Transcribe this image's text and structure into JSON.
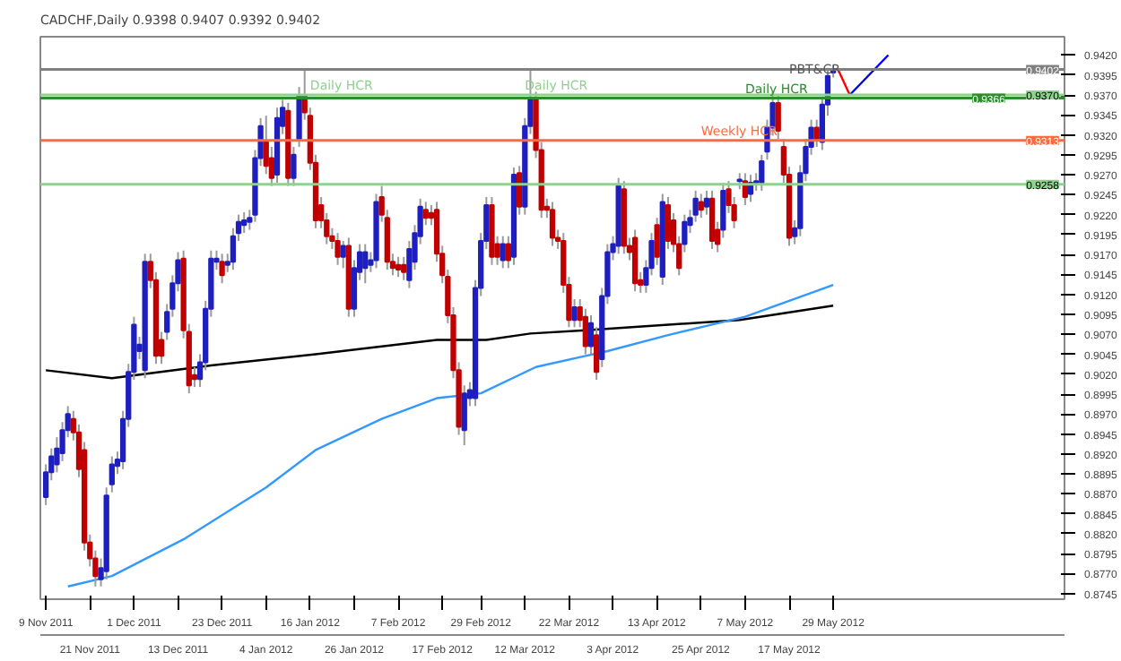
{
  "chart_data": {
    "type": "candlestick",
    "title": "CADCHF,Daily  0.9398 0.9407 0.9392 0.9402",
    "categories": [
      "9 Nov 2011",
      null,
      null,
      null,
      null,
      null,
      null,
      null,
      "21 Nov 2011",
      null,
      null,
      null,
      null,
      null,
      null,
      null,
      "1 Dec 2011",
      null,
      null,
      null,
      null,
      null,
      null,
      null,
      "13 Dec 2011",
      null,
      null,
      null,
      null,
      null,
      null,
      null,
      "23 Dec 2011",
      null,
      null,
      null,
      null,
      null,
      null,
      null,
      "4 Jan 2012",
      null,
      null,
      null,
      null,
      null,
      null,
      null,
      "16 Jan 2012",
      null,
      null,
      null,
      null,
      null,
      null,
      null,
      "26 Jan 2012",
      null,
      null,
      null,
      null,
      null,
      null,
      null,
      "7 Feb 2012",
      null,
      null,
      null,
      null,
      null,
      null,
      null,
      "17 Feb 2012",
      null,
      null,
      null,
      null,
      null,
      null,
      "29 Feb 2012",
      null,
      null,
      null,
      null,
      null,
      null,
      null,
      "12 Mar 2012",
      null,
      null,
      null,
      null,
      null,
      null,
      null,
      "22 Mar 2012",
      null,
      null,
      null,
      null,
      null,
      null,
      null,
      "3 Apr 2012",
      null,
      null,
      null,
      null,
      null,
      null,
      null,
      "13 Apr 2012",
      null,
      null,
      null,
      null,
      null,
      null,
      null,
      "25 Apr 2012",
      null,
      null,
      null,
      null,
      null,
      null,
      null,
      "7 May 2012",
      null,
      null,
      null,
      null,
      null,
      null,
      null,
      "17 May 2012",
      null,
      null,
      null,
      null,
      null,
      null,
      null,
      "29 May 2012",
      null,
      null,
      null,
      null,
      null,
      null,
      null,
      null,
      null,
      null,
      null,
      null,
      null,
      null,
      null,
      null,
      null,
      null,
      null,
      null,
      null,
      null,
      null,
      null,
      null,
      null,
      null,
      null,
      null,
      null,
      null,
      null,
      null,
      null,
      null,
      null,
      null,
      null,
      null,
      null,
      null
    ],
    "ohlc": [
      [
        0.8866,
        0.8907,
        0.8856,
        0.8897
      ],
      [
        0.8897,
        0.8927,
        0.8887,
        0.8917
      ],
      [
        0.8907,
        0.8941,
        0.8897,
        0.8927
      ],
      [
        0.8921,
        0.896,
        0.8911,
        0.895
      ],
      [
        0.895,
        0.898,
        0.8941,
        0.897
      ],
      [
        0.8964,
        0.8974,
        0.8937,
        0.8947
      ],
      [
        0.8947,
        0.8957,
        0.8891,
        0.8901
      ],
      [
        0.8925,
        0.8935,
        0.8799,
        0.8809
      ],
      [
        0.8809,
        0.8819,
        0.8779,
        0.8789
      ],
      [
        0.8789,
        0.8799,
        0.8754,
        0.8767
      ],
      [
        0.8763,
        0.8789,
        0.8754,
        0.8777
      ],
      [
        0.8773,
        0.8878,
        0.8763,
        0.8868
      ],
      [
        0.8882,
        0.8917,
        0.8872,
        0.8907
      ],
      [
        0.8905,
        0.8923,
        0.8895,
        0.8913
      ],
      [
        0.8911,
        0.8974,
        0.8901,
        0.8964
      ],
      [
        0.8964,
        0.9033,
        0.8954,
        0.9023
      ],
      [
        0.9023,
        0.9092,
        0.9013,
        0.9082
      ],
      [
        0.9049,
        0.9067,
        0.9039,
        0.9057
      ],
      [
        0.9025,
        0.9171,
        0.9015,
        0.9161
      ],
      [
        0.9161,
        0.9171,
        0.9128,
        0.9138
      ],
      [
        0.9138,
        0.9148,
        0.9033,
        0.9043
      ],
      [
        0.9063,
        0.9073,
        0.9033,
        0.9043
      ],
      [
        0.9073,
        0.9108,
        0.9063,
        0.9098
      ],
      [
        0.9102,
        0.9144,
        0.9092,
        0.9134
      ],
      [
        0.9134,
        0.9173,
        0.9124,
        0.9163
      ],
      [
        0.9165,
        0.9175,
        0.9065,
        0.9075
      ],
      [
        0.9073,
        0.9083,
        0.8996,
        0.9006
      ],
      [
        0.9019,
        0.9029,
        0.9004,
        0.9014
      ],
      [
        0.9014,
        0.9045,
        0.9004,
        0.9035
      ],
      [
        0.9035,
        0.9112,
        0.9025,
        0.9102
      ],
      [
        0.9102,
        0.9175,
        0.9092,
        0.9165
      ],
      [
        0.9161,
        0.9175,
        0.9151,
        0.9165
      ],
      [
        0.9161,
        0.9171,
        0.9134,
        0.9144
      ],
      [
        0.9157,
        0.9171,
        0.9148,
        0.9161
      ],
      [
        0.9161,
        0.9203,
        0.9151,
        0.9193
      ],
      [
        0.9197,
        0.922,
        0.9187,
        0.9211
      ],
      [
        0.9207,
        0.9223,
        0.9197,
        0.9213
      ],
      [
        0.9211,
        0.9226,
        0.9201,
        0.9216
      ],
      [
        0.922,
        0.9301,
        0.9211,
        0.9291
      ],
      [
        0.9291,
        0.9341,
        0.9281,
        0.9331
      ],
      [
        0.9311,
        0.9344,
        0.9271,
        0.9281
      ],
      [
        0.9291,
        0.9305,
        0.9256,
        0.9266
      ],
      [
        0.927,
        0.9354,
        0.926,
        0.9341
      ],
      [
        0.9331,
        0.9364,
        0.9321,
        0.9354
      ],
      [
        0.935,
        0.936,
        0.9256,
        0.9266
      ],
      [
        0.9266,
        0.9305,
        0.9256,
        0.9295
      ],
      [
        0.9315,
        0.938,
        0.9305,
        0.937
      ],
      [
        0.937,
        0.9402,
        0.9339,
        0.9348
      ],
      [
        0.9344,
        0.9354,
        0.9276,
        0.9285
      ],
      [
        0.9285,
        0.9295,
        0.9203,
        0.9213
      ],
      [
        0.9232,
        0.9242,
        0.9203,
        0.9213
      ],
      [
        0.9213,
        0.9222,
        0.9183,
        0.9193
      ],
      [
        0.9193,
        0.9203,
        0.9177,
        0.9187
      ],
      [
        0.9187,
        0.9197,
        0.9157,
        0.9167
      ],
      [
        0.9167,
        0.9187,
        0.9153,
        0.9181
      ],
      [
        0.9181,
        0.9191,
        0.9092,
        0.9102
      ],
      [
        0.9102,
        0.9163,
        0.9092,
        0.9153
      ],
      [
        0.9148,
        0.9183,
        0.9138,
        0.9173
      ],
      [
        0.9153,
        0.9183,
        0.9134,
        0.9173
      ],
      [
        0.9157,
        0.9173,
        0.9148,
        0.9163
      ],
      [
        0.9163,
        0.9246,
        0.9153,
        0.9236
      ],
      [
        0.9242,
        0.9256,
        0.9211,
        0.922
      ],
      [
        0.9216,
        0.9226,
        0.9151,
        0.9161
      ],
      [
        0.9161,
        0.9171,
        0.9144,
        0.9153
      ],
      [
        0.9157,
        0.9167,
        0.9142,
        0.9151
      ],
      [
        0.9157,
        0.9167,
        0.9138,
        0.9148
      ],
      [
        0.9138,
        0.9187,
        0.9128,
        0.9177
      ],
      [
        0.9161,
        0.9207,
        0.9151,
        0.9197
      ],
      [
        0.9193,
        0.924,
        0.9183,
        0.923
      ],
      [
        0.9226,
        0.9236,
        0.9207,
        0.9216
      ],
      [
        0.9222,
        0.9232,
        0.9207,
        0.9216
      ],
      [
        0.9226,
        0.9236,
        0.9161,
        0.9171
      ],
      [
        0.9171,
        0.9181,
        0.9134,
        0.9144
      ],
      [
        0.9142,
        0.9151,
        0.9084,
        0.9094
      ],
      [
        0.9094,
        0.9104,
        0.9015,
        0.9025
      ],
      [
        0.9025,
        0.9035,
        0.8944,
        0.8954
      ],
      [
        0.895,
        0.9006,
        0.8931,
        0.8996
      ],
      [
        0.899,
        0.901,
        0.898,
        0.9
      ],
      [
        0.899,
        0.9138,
        0.898,
        0.9128
      ],
      [
        0.9128,
        0.9197,
        0.9118,
        0.9187
      ],
      [
        0.9187,
        0.9242,
        0.9177,
        0.9232
      ],
      [
        0.9232,
        0.9242,
        0.9157,
        0.9167
      ],
      [
        0.9183,
        0.9193,
        0.9157,
        0.9167
      ],
      [
        0.9163,
        0.9193,
        0.9153,
        0.9183
      ],
      [
        0.9183,
        0.9193,
        0.9153,
        0.9163
      ],
      [
        0.9167,
        0.9279,
        0.9157,
        0.927
      ],
      [
        0.9272,
        0.9281,
        0.922,
        0.923
      ],
      [
        0.923,
        0.9341,
        0.922,
        0.9331
      ],
      [
        0.9331,
        0.9402,
        0.9321,
        0.9364
      ],
      [
        0.9364,
        0.9374,
        0.9291,
        0.9301
      ],
      [
        0.9301,
        0.9311,
        0.9216,
        0.9226
      ],
      [
        0.923,
        0.924,
        0.9216,
        0.9226
      ],
      [
        0.9226,
        0.9236,
        0.9181,
        0.9191
      ],
      [
        0.9191,
        0.9201,
        0.9177,
        0.9187
      ],
      [
        0.9187,
        0.9197,
        0.9122,
        0.9132
      ],
      [
        0.9132,
        0.9142,
        0.9079,
        0.9088
      ],
      [
        0.9088,
        0.9114,
        0.9079,
        0.9104
      ],
      [
        0.9104,
        0.9114,
        0.9079,
        0.9088
      ],
      [
        0.9092,
        0.9102,
        0.9045,
        0.9055
      ],
      [
        0.9055,
        0.9094,
        0.9045,
        0.9084
      ],
      [
        0.9069,
        0.9079,
        0.9013,
        0.9023
      ],
      [
        0.9039,
        0.9128,
        0.9029,
        0.9118
      ],
      [
        0.9118,
        0.9183,
        0.9108,
        0.9173
      ],
      [
        0.9173,
        0.9193,
        0.9163,
        0.9183
      ],
      [
        0.9181,
        0.9266,
        0.9171,
        0.9256
      ],
      [
        0.9252,
        0.9262,
        0.9171,
        0.9181
      ],
      [
        0.9181,
        0.9191,
        0.9163,
        0.9173
      ],
      [
        0.9191,
        0.9201,
        0.9124,
        0.9134
      ],
      [
        0.9138,
        0.9148,
        0.9122,
        0.9132
      ],
      [
        0.9132,
        0.9163,
        0.9122,
        0.9153
      ],
      [
        0.9153,
        0.9197,
        0.9144,
        0.9187
      ],
      [
        0.9207,
        0.9216,
        0.9157,
        0.9167
      ],
      [
        0.9142,
        0.9246,
        0.9132,
        0.9236
      ],
      [
        0.9232,
        0.9242,
        0.9177,
        0.9187
      ],
      [
        0.9213,
        0.9222,
        0.9173,
        0.9183
      ],
      [
        0.9183,
        0.9193,
        0.9144,
        0.9153
      ],
      [
        0.9183,
        0.922,
        0.9173,
        0.9211
      ],
      [
        0.9207,
        0.9226,
        0.9197,
        0.9216
      ],
      [
        0.922,
        0.925,
        0.9211,
        0.924
      ],
      [
        0.9236,
        0.9246,
        0.9216,
        0.9226
      ],
      [
        0.923,
        0.925,
        0.922,
        0.924
      ],
      [
        0.924,
        0.925,
        0.9177,
        0.9187
      ],
      [
        0.9201,
        0.9211,
        0.9173,
        0.9183
      ],
      [
        0.9201,
        0.926,
        0.9191,
        0.925
      ],
      [
        0.9252,
        0.9262,
        0.9222,
        0.9232
      ],
      [
        0.9232,
        0.9242,
        0.9203,
        0.9213
      ],
      [
        0.9262,
        0.9272,
        0.9252,
        0.9264
      ],
      [
        0.9262,
        0.9272,
        0.9232,
        0.9242
      ],
      [
        0.9246,
        0.927,
        0.9236,
        0.926
      ],
      [
        0.926,
        0.9272,
        0.925,
        0.9262
      ],
      [
        0.926,
        0.9295,
        0.925,
        0.9287
      ],
      [
        0.9299,
        0.9339,
        0.9289,
        0.9329
      ],
      [
        0.9329,
        0.9374,
        0.9319,
        0.936
      ],
      [
        0.936,
        0.937,
        0.9315,
        0.9325
      ],
      [
        0.9305,
        0.9315,
        0.926,
        0.927
      ],
      [
        0.927,
        0.928,
        0.9181,
        0.9191
      ],
      [
        0.9193,
        0.9213,
        0.9183,
        0.9203
      ],
      [
        0.9203,
        0.9282,
        0.9193,
        0.9272
      ],
      [
        0.9272,
        0.9315,
        0.9262,
        0.9305
      ],
      [
        0.9305,
        0.9339,
        0.9295,
        0.9329
      ],
      [
        0.9329,
        0.9339,
        0.9305,
        0.9315
      ],
      [
        0.9311,
        0.9368,
        0.9301,
        0.9358
      ],
      [
        0.9358,
        0.9404,
        0.9344,
        0.9394
      ],
      [
        0.9398,
        0.9407,
        0.9392,
        0.9402
      ],
      null,
      null,
      null,
      null,
      null,
      null,
      null,
      null,
      null,
      null,
      null,
      null,
      null,
      null,
      null,
      null,
      null,
      null,
      null,
      null,
      null,
      null,
      null,
      null,
      null,
      null,
      null,
      null,
      null,
      null,
      null,
      null,
      null,
      null,
      null,
      null,
      null,
      null,
      null,
      null,
      null
    ],
    "series": [
      {
        "type": "line",
        "color": "#000000",
        "values": [
          0.9025,
          null,
          null,
          null,
          null,
          null,
          null,
          null,
          null,
          null,
          null,
          null,
          0.9015,
          null,
          null,
          null,
          null,
          null,
          null,
          null,
          null,
          null,
          null,
          null,
          null,
          null,
          null,
          null,
          null,
          null,
          0.9031,
          null,
          null,
          null,
          null,
          null,
          null,
          null,
          null,
          null,
          null,
          null,
          null,
          null,
          null,
          null,
          null,
          null,
          null,
          0.9045,
          null,
          null,
          null,
          null,
          null,
          null,
          null,
          null,
          null,
          null,
          null,
          null,
          null,
          null,
          null,
          null,
          null,
          null,
          null,
          null,
          null,
          0.9063,
          null,
          null,
          null,
          null,
          null,
          null,
          null,
          null,
          0.9063,
          null,
          null,
          null,
          null,
          null,
          null,
          null,
          0.9071,
          null,
          null,
          null,
          null,
          null,
          null,
          null,
          null,
          null,
          0.9075,
          null,
          null,
          null,
          null,
          null,
          null,
          null,
          null,
          null,
          null,
          null,
          null,
          null,
          null,
          null,
          null,
          null,
          null,
          null,
          null,
          null,
          null,
          null,
          null,
          null,
          null,
          null,
          0.9088,
          null,
          null,
          null,
          null,
          null,
          null,
          null,
          null,
          null,
          null,
          null,
          null,
          null,
          null,
          null,
          null,
          0.9106,
          null,
          null,
          null,
          null,
          null,
          null,
          null,
          null,
          null,
          null,
          null,
          null,
          null,
          null,
          null,
          null,
          null,
          null,
          null,
          null,
          null,
          null,
          null,
          null,
          null,
          null,
          null,
          null,
          null,
          null,
          null,
          null,
          null,
          null,
          null,
          null,
          null,
          null,
          null,
          null,
          null
        ]
      },
      {
        "type": "line",
        "color": "#3399ff",
        "values": [
          null,
          null,
          null,
          null,
          0.8754,
          null,
          null,
          null,
          null,
          null,
          null,
          null,
          0.8767,
          null,
          null,
          null,
          null,
          null,
          null,
          null,
          null,
          null,
          null,
          null,
          null,
          0.8813,
          null,
          null,
          null,
          null,
          null,
          null,
          null,
          null,
          null,
          null,
          null,
          null,
          null,
          null,
          0.8878,
          null,
          null,
          null,
          null,
          null,
          null,
          null,
          null,
          0.8925,
          null,
          null,
          null,
          null,
          null,
          null,
          null,
          null,
          null,
          null,
          null,
          0.8964,
          null,
          null,
          null,
          null,
          null,
          null,
          null,
          null,
          null,
          0.899,
          null,
          null,
          null,
          null,
          null,
          null,
          null,
          0.8996,
          null,
          null,
          null,
          null,
          null,
          null,
          null,
          null,
          null,
          0.9029,
          null,
          null,
          null,
          null,
          null,
          null,
          null,
          null,
          0.9043,
          null,
          null,
          null,
          0.9049,
          null,
          null,
          null,
          null,
          null,
          null,
          null,
          null,
          null,
          null,
          0.9069,
          null,
          null,
          null,
          null,
          null,
          null,
          null,
          null,
          null,
          null,
          null,
          null,
          null,
          0.9092,
          null,
          null,
          null,
          null,
          null,
          null,
          null,
          0.9112,
          null,
          null,
          null,
          null,
          null,
          null,
          null,
          0.9132,
          null,
          null,
          null,
          null,
          null,
          null,
          null,
          null,
          null,
          null,
          null,
          null,
          null,
          null,
          null,
          null,
          null,
          null,
          null,
          null,
          null,
          null,
          null,
          null,
          null,
          null,
          null,
          null,
          null,
          null,
          null,
          null,
          null,
          null,
          null,
          null,
          null,
          null,
          null,
          null,
          null
        ]
      },
      {
        "type": "line",
        "color": "#ff0000",
        "values": [
          null,
          null,
          null,
          null,
          null,
          null,
          null,
          null,
          null,
          null,
          null,
          null,
          null,
          null,
          null,
          null,
          null,
          null,
          null,
          null,
          null,
          null,
          null,
          null,
          null,
          null,
          null,
          null,
          null,
          null,
          null,
          null,
          null,
          null,
          null,
          null,
          null,
          null,
          null,
          null,
          null,
          null,
          null,
          null,
          null,
          null,
          null,
          null,
          null,
          null,
          null,
          null,
          null,
          null,
          null,
          null,
          null,
          null,
          null,
          null,
          null,
          null,
          null,
          null,
          null,
          null,
          null,
          null,
          null,
          null,
          null,
          null,
          null,
          null,
          null,
          null,
          null,
          null,
          null,
          null,
          null,
          null,
          null,
          null,
          null,
          null,
          null,
          null,
          null,
          null,
          null,
          null,
          null,
          null,
          null,
          null,
          null,
          null,
          null,
          null,
          null,
          null,
          null,
          null,
          null,
          null,
          null,
          null,
          null,
          null,
          null,
          null,
          null,
          null,
          null,
          null,
          null,
          null,
          null,
          null,
          null,
          null,
          null,
          null,
          null,
          null,
          null,
          null,
          null,
          null,
          null,
          null,
          null,
          null,
          null,
          null,
          null,
          null,
          null,
          null,
          null,
          null,
          null,
          null,
          0.94,
          null,
          0.937,
          null,
          null,
          null,
          null,
          null,
          null,
          null,
          null,
          null,
          null,
          null,
          null,
          null,
          null,
          null,
          null,
          null,
          null,
          null,
          null,
          null,
          null,
          null,
          null,
          null,
          null,
          null,
          null,
          null,
          null,
          null,
          null,
          null,
          null,
          null,
          null,
          null,
          null
        ]
      },
      {
        "type": "line",
        "color": "#0000ff",
        "values": [
          null,
          null,
          null,
          null,
          null,
          null,
          null,
          null,
          null,
          null,
          null,
          null,
          null,
          null,
          null,
          null,
          null,
          null,
          null,
          null,
          null,
          null,
          null,
          null,
          null,
          null,
          null,
          null,
          null,
          null,
          null,
          null,
          null,
          null,
          null,
          null,
          null,
          null,
          null,
          null,
          null,
          null,
          null,
          null,
          null,
          null,
          null,
          null,
          null,
          null,
          null,
          null,
          null,
          null,
          null,
          null,
          null,
          null,
          null,
          null,
          null,
          null,
          null,
          null,
          null,
          null,
          null,
          null,
          null,
          null,
          null,
          null,
          null,
          null,
          null,
          null,
          null,
          null,
          null,
          null,
          null,
          null,
          null,
          null,
          null,
          null,
          null,
          null,
          null,
          null,
          null,
          null,
          null,
          null,
          null,
          null,
          null,
          null,
          null,
          null,
          null,
          null,
          null,
          null,
          null,
          null,
          null,
          null,
          null,
          null,
          null,
          null,
          null,
          null,
          null,
          null,
          null,
          null,
          null,
          null,
          null,
          null,
          null,
          null,
          null,
          null,
          null,
          null,
          null,
          null,
          null,
          null,
          null,
          null,
          null,
          null,
          null,
          null,
          null,
          null,
          null,
          null,
          null,
          null,
          null,
          null,
          0.937,
          null,
          null,
          null,
          null,
          null,
          null,
          0.942,
          null,
          null,
          null,
          null,
          null,
          null,
          null,
          null,
          null,
          null,
          null,
          null,
          null,
          null,
          null,
          null,
          null,
          null,
          null,
          null,
          null,
          null,
          null,
          null,
          null,
          null,
          null,
          null,
          null,
          null,
          null
        ]
      }
    ],
    "ylim": [
      0.8738,
      0.9443
    ],
    "yticks": [
      0.8745,
      {
        "value": 0.877,
        "label": "0.8770"
      },
      0.8795,
      {
        "value": 0.882,
        "label": "0.8820"
      },
      0.8845,
      {
        "value": 0.887,
        "label": "0.8870"
      },
      0.8895,
      {
        "value": 0.892,
        "label": "0.8920"
      },
      0.8945,
      {
        "value": 0.897,
        "label": "0.8970"
      },
      0.8995,
      {
        "value": 0.902,
        "label": "0.9020"
      },
      0.9045,
      {
        "value": 0.907,
        "label": "0.9070"
      },
      0.9095,
      {
        "value": 0.912,
        "label": "0.9120"
      },
      0.9145,
      {
        "value": 0.917,
        "label": "0.9170"
      },
      0.9195,
      {
        "value": 0.922,
        "label": "0.9220"
      },
      0.9245,
      {
        "value": 0.927,
        "label": "0.9270"
      },
      0.9295,
      {
        "value": 0.932,
        "label": "0.9320"
      },
      0.9345,
      {
        "value": 0.937,
        "label": "0.9370"
      },
      0.9395,
      {
        "value": 0.942,
        "label": "0.9420"
      }
    ],
    "ref_lines": [
      {
        "axis": "y",
        "value": 0.9402,
        "label": "0.9402",
        "color": "#808080"
      },
      {
        "axis": "y",
        "value": 0.937,
        "label": "0.9370",
        "color": "#90d090"
      },
      {
        "axis": "y",
        "value": 0.9366,
        "label": "0.9366",
        "color": "#2e8b2e"
      },
      {
        "axis": "y",
        "value": 0.9313,
        "label": "0.9313",
        "color": "#ff6a3d"
      },
      {
        "axis": "y",
        "value": 0.9258,
        "label": "0.9258",
        "color": "#90d090"
      }
    ],
    "annotations": [
      {
        "text": "Daily HCR",
        "x": "16 Jan 2012",
        "y": 0.9372
      },
      {
        "text": "Daily HCR",
        "x": "12 Mar 2012",
        "y": 0.9372
      },
      {
        "text": "Daily HCR",
        "x": "7 May 2012",
        "y": 0.9368
      },
      {
        "text": "Weekly HCR",
        "x": "25 Apr 2012",
        "y": 0.9315
      },
      {
        "text": "PBT&CR",
        "x": "17 May 2012",
        "y": 0.9392
      }
    ]
  }
}
